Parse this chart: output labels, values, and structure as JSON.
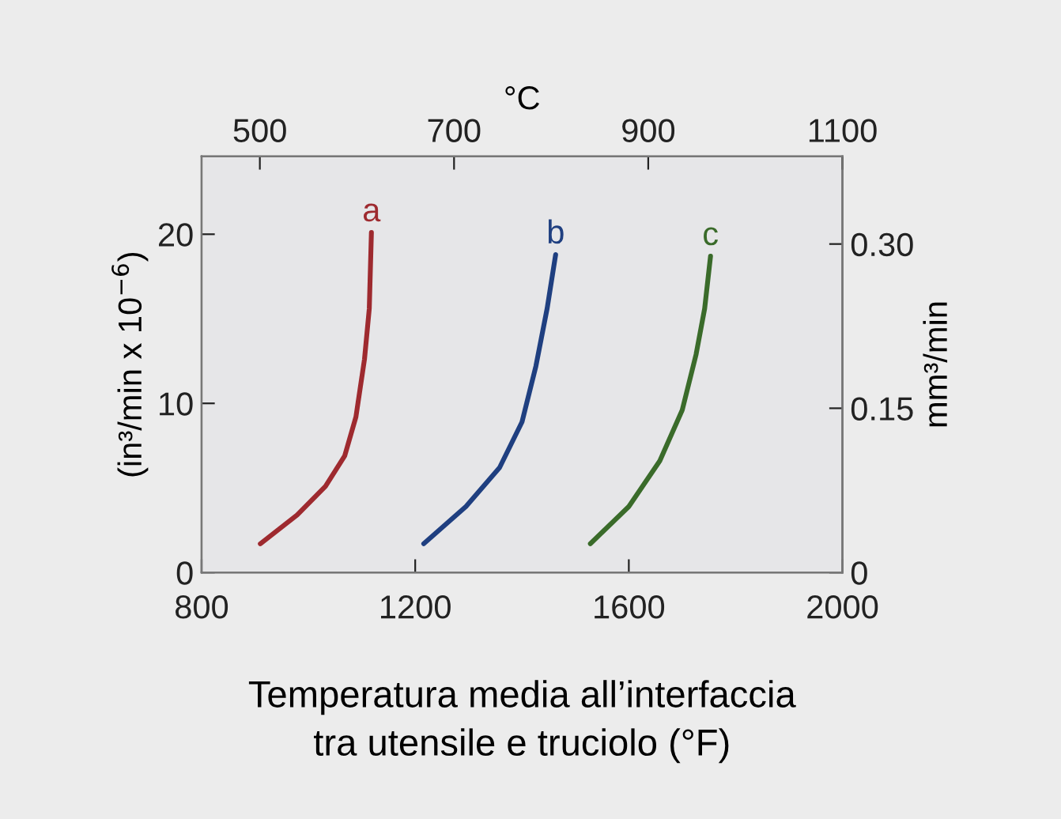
{
  "chart_data": {
    "type": "line",
    "xlabel": "Temperatura media all’interfaccia\ntra utensile e truciolo (°F)",
    "ylabel": "(in³/min x 10$^{−6}$)",
    "y2label": "mm³/min",
    "x2label": "°C",
    "xlim": [
      800,
      2000
    ],
    "xticks": [
      800,
      1200,
      1600,
      2000
    ],
    "ylim": [
      0,
      24.6
    ],
    "yticks": [
      0,
      10,
      20
    ],
    "x2lim": [
      440,
      1100
    ],
    "x2ticks": [
      500,
      700,
      900,
      1100
    ],
    "y2lim": [
      0,
      0.38
    ],
    "y2ticks": [
      0,
      0.15,
      {
        "value": 0.3,
        "label": "0.30"
      }
    ],
    "grid": false,
    "legend": false,
    "marker": "none",
    "line_style": "solid",
    "series": [
      {
        "name": "a",
        "color": "#9e2a2f",
        "x": [
          910,
          979,
          1032,
          1068,
          1089,
          1105,
          1114,
          1118
        ],
        "values": [
          1.7,
          3.4,
          5.1,
          6.9,
          9.2,
          12.6,
          15.6,
          20.1
        ]
      },
      {
        "name": "b",
        "color": "#1f3f80",
        "x": [
          1216,
          1295,
          1358,
          1400,
          1426,
          1447,
          1463
        ],
        "values": [
          1.7,
          3.9,
          6.2,
          8.9,
          12.2,
          15.6,
          18.8
        ]
      },
      {
        "name": "c",
        "color": "#3a6b2a",
        "x": [
          1528,
          1600,
          1658,
          1700,
          1726,
          1742,
          1753
        ],
        "values": [
          1.7,
          3.9,
          6.6,
          9.6,
          12.9,
          15.6,
          18.7
        ]
      }
    ]
  }
}
